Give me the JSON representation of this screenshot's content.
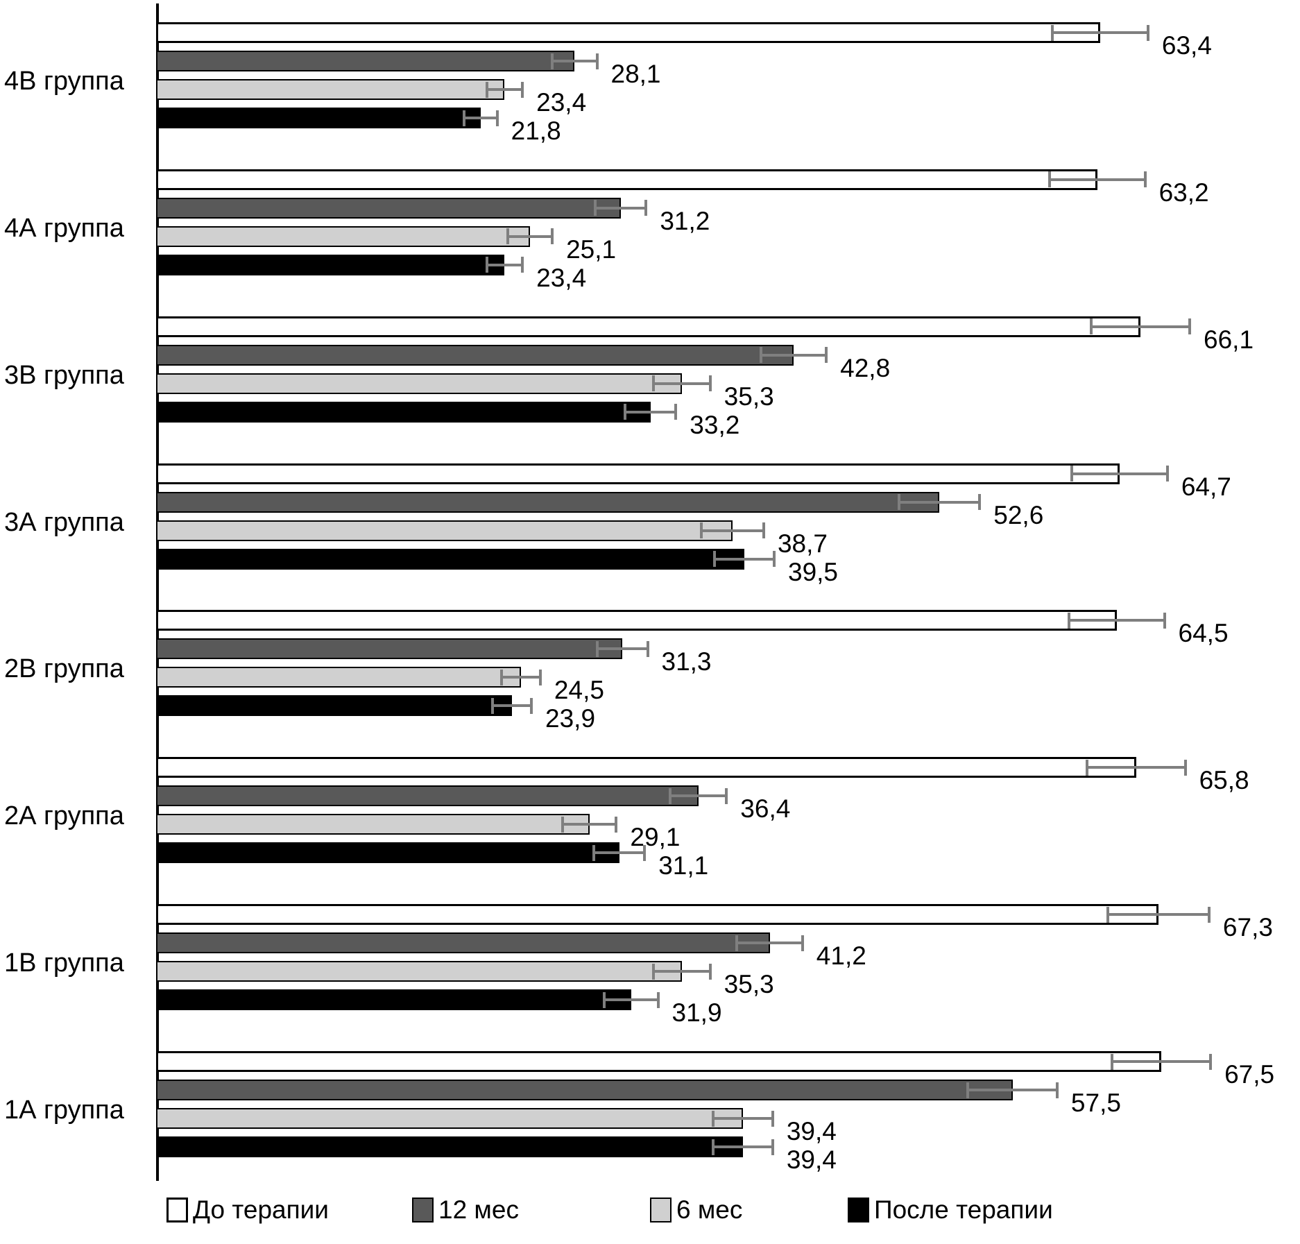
{
  "chart_data": {
    "type": "bar",
    "orientation": "horizontal",
    "title": "",
    "xlabel": "",
    "ylabel": "",
    "xlim": [
      0,
      77
    ],
    "grid": false,
    "axis_color": "#000000",
    "error_bar_color": "#7f7f7f",
    "value_label_decimal_separator": ",",
    "legend_position": "bottom",
    "categories_top_to_bottom": [
      "4В группа",
      "4А группа",
      "3В группа",
      "3А группа",
      "2В группа",
      "2А группа",
      "1В группа",
      "1А группа"
    ],
    "bar_order_in_group_top_to_bottom": [
      "До терапии",
      "12 мес",
      "6 мес",
      "После терапии"
    ],
    "series": [
      {
        "name": "До терапии",
        "color": "#ffffff",
        "border_color": "#000000",
        "values": [
          63.4,
          63.2,
          66.1,
          64.7,
          64.5,
          65.8,
          67.3,
          67.5
        ],
        "errors": [
          3.2,
          3.2,
          3.3,
          3.2,
          3.2,
          3.3,
          3.4,
          3.3
        ],
        "value_labels": [
          "63,4",
          "63,2",
          "66,1",
          "64,7",
          "64,5",
          "65,8",
          "67,3",
          "67,5"
        ]
      },
      {
        "name": "12 мес",
        "color": "#595959",
        "border_color": "#000000",
        "values": [
          28.1,
          31.2,
          42.8,
          52.6,
          31.3,
          36.4,
          41.2,
          57.5
        ],
        "errors": [
          1.5,
          1.7,
          2.2,
          2.7,
          1.7,
          1.9,
          2.2,
          3.0
        ],
        "value_labels": [
          "28,1",
          "31,2",
          "42,8",
          "52,6",
          "31,3",
          "36,4",
          "41,2",
          "57,5"
        ]
      },
      {
        "name": "6 мес",
        "color": "#d0d0d0",
        "border_color": "#000000",
        "values": [
          23.4,
          25.1,
          35.3,
          38.7,
          24.5,
          29.1,
          35.3,
          39.4
        ],
        "errors": [
          1.2,
          1.5,
          1.9,
          2.1,
          1.3,
          1.8,
          1.9,
          2.0
        ],
        "value_labels": [
          "23,4",
          "25,1",
          "35,3",
          "38,7",
          "24,5",
          "29,1",
          "35,3",
          "39,4"
        ]
      },
      {
        "name": "После терапии",
        "color": "#000000",
        "border_color": "#000000",
        "values": [
          21.8,
          23.4,
          33.2,
          39.5,
          23.9,
          31.1,
          31.9,
          39.4
        ],
        "errors": [
          1.1,
          1.2,
          1.7,
          2.0,
          1.3,
          1.7,
          1.8,
          2.0
        ],
        "value_labels": [
          "21,8",
          "23,4",
          "33,2",
          "39,5",
          "23,9",
          "31,1",
          "31,9",
          "39,4"
        ]
      }
    ],
    "legend": [
      "До терапии",
      "12 мес",
      "6 мес",
      "После терапии"
    ]
  }
}
